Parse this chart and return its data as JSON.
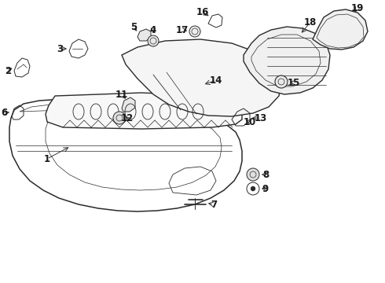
{
  "background_color": "#ffffff",
  "line_color": "#2a2a2a",
  "text_color": "#1a1a1a",
  "fig_width": 4.9,
  "fig_height": 3.6,
  "dpi": 100,
  "label_fontsize": 8.5,
  "parts": {
    "bumper_cover": "part1_large_front_bumper_lower",
    "reinforce": "part10_horizontal_bar",
    "upper": "part14_upper_grille_area",
    "right_bracket": "part18_radiator_support",
    "right_ext": "part19_side_extension"
  }
}
